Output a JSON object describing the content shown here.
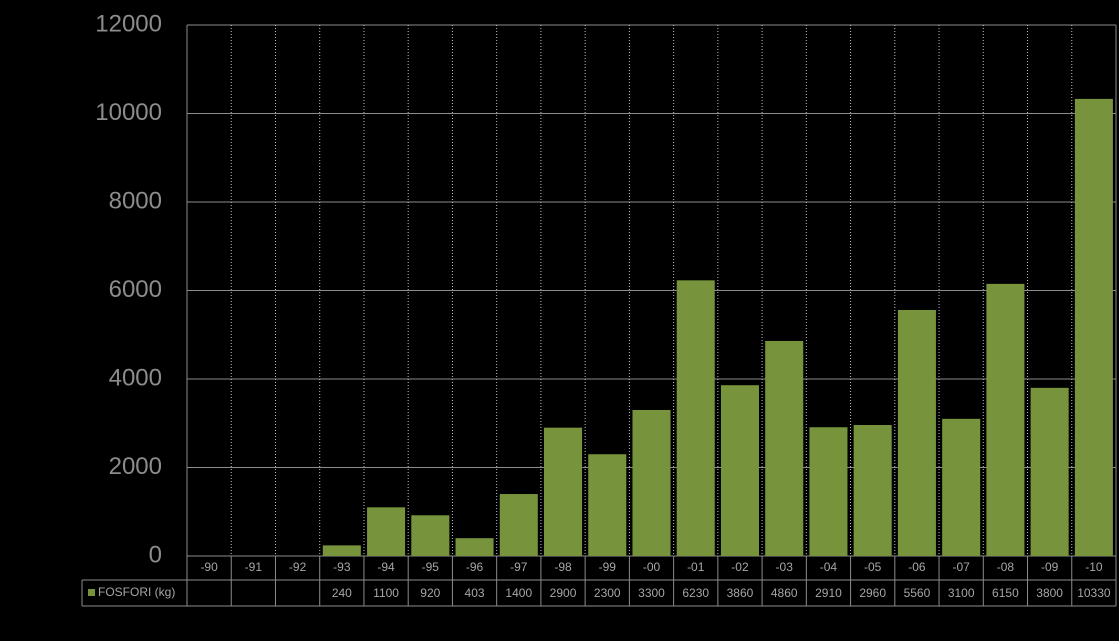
{
  "chart_data": {
    "type": "bar",
    "categories": [
      "-90",
      "-91",
      "-92",
      "-93",
      "-94",
      "-95",
      "-96",
      "-97",
      "-98",
      "-99",
      "-00",
      "-01",
      "-02",
      "-03",
      "-04",
      "-05",
      "-06",
      "-07",
      "-08",
      "-09",
      "-10"
    ],
    "series": [
      {
        "name": "FOSFORI (kg)",
        "color": "#77933c",
        "values": [
          null,
          null,
          null,
          240,
          1100,
          920,
          403,
          1400,
          2900,
          2300,
          3300,
          6230,
          3860,
          4860,
          2910,
          2960,
          5560,
          3100,
          6150,
          3800,
          10330
        ]
      }
    ],
    "ylim": [
      0,
      12000
    ],
    "yticks": [
      0,
      2000,
      4000,
      6000,
      8000,
      10000,
      12000
    ],
    "grid": true
  }
}
